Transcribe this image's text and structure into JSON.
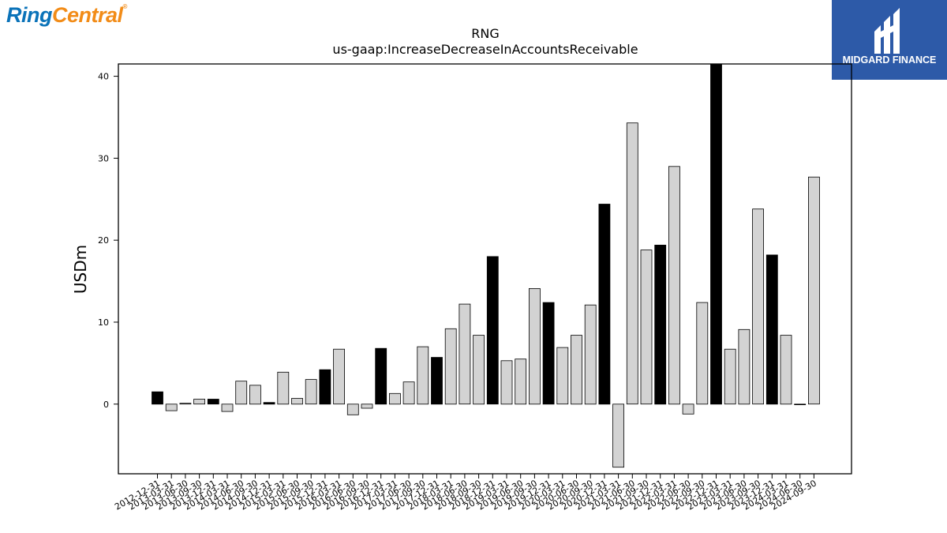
{
  "logos": {
    "left": {
      "part1": "Ring",
      "part2": "Central",
      "mark": "®"
    },
    "right": {
      "name": "MIDGARD FINANCE"
    }
  },
  "chart_data": {
    "type": "bar",
    "title": "RNG",
    "subtitle": "us-gaap:IncreaseDecreaseInAccountsReceivable",
    "ylabel": "USDm",
    "xlabel": "",
    "ylim": [
      -8.5,
      41.5
    ],
    "yticks": [
      0,
      10,
      20,
      30,
      40
    ],
    "grid": false,
    "categories": [
      "2012-12-31",
      "2013-03-31",
      "2013-06-30",
      "2013-09-30",
      "2013-12-31",
      "2014-03-31",
      "2014-06-30",
      "2014-09-30",
      "2014-12-31",
      "2015-03-31",
      "2015-06-30",
      "2015-09-30",
      "2015-12-31",
      "2016-03-31",
      "2016-06-30",
      "2016-09-30",
      "2016-12-31",
      "2017-03-31",
      "2017-06-30",
      "2017-09-30",
      "2017-12-31",
      "2018-03-31",
      "2018-06-30",
      "2018-09-30",
      "2018-12-31",
      "2019-03-31",
      "2019-06-30",
      "2019-09-30",
      "2019-12-31",
      "2020-03-31",
      "2020-06-30",
      "2020-09-30",
      "2020-12-31",
      "2021-03-31",
      "2021-06-30",
      "2021-09-30",
      "2021-12-31",
      "2022-03-31",
      "2022-06-30",
      "2022-09-30",
      "2022-12-31",
      "2023-03-31",
      "2023-06-30",
      "2023-09-30",
      "2023-12-31",
      "2024-03-31",
      "2024-06-30",
      "2024-09-30"
    ],
    "values": [
      1.5,
      -0.8,
      0.1,
      0.6,
      0.6,
      -0.9,
      2.8,
      2.3,
      0.2,
      3.9,
      0.7,
      3.0,
      4.2,
      6.7,
      -1.3,
      -0.5,
      6.8,
      1.3,
      2.7,
      7.0,
      5.7,
      9.2,
      12.2,
      8.4,
      18.0,
      5.3,
      5.5,
      14.1,
      12.4,
      6.9,
      8.4,
      12.1,
      24.4,
      -7.7,
      34.3,
      18.8,
      19.4,
      29.0,
      -1.2,
      12.4,
      41.5,
      6.7,
      9.1,
      23.8,
      18.2,
      8.4,
      0.0,
      27.7
    ],
    "colors": {
      "q4": "#000000",
      "other": "#d3d3d3",
      "edge": "#000000"
    }
  }
}
